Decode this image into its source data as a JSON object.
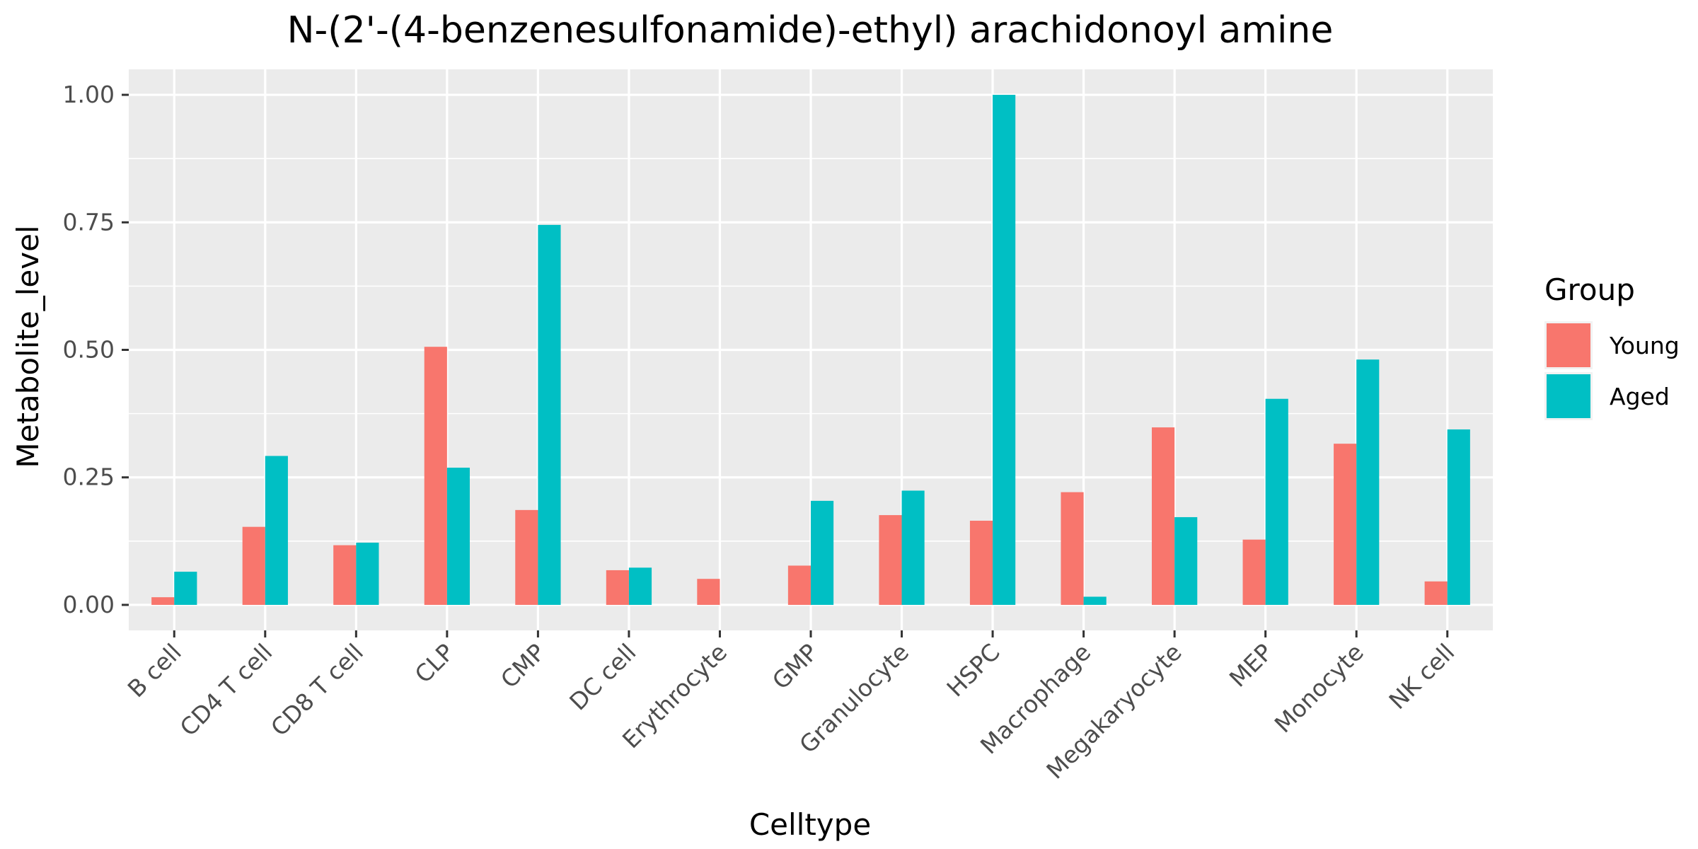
{
  "chart_data": {
    "type": "bar",
    "title": "N-(2'-(4-benzenesulfonamide)-ethyl) arachidonoyl amine",
    "xlabel": "Celltype",
    "ylabel": "Metabolite_level",
    "categories": [
      "B cell",
      "CD4 T cell",
      "CD8 T cell",
      "CLP",
      "CMP",
      "DC cell",
      "Erythrocyte",
      "GMP",
      "Granulocyte",
      "HSPC",
      "Macrophage",
      "Megakaryocyte",
      "MEP",
      "Monocyte",
      "NK cell"
    ],
    "series": [
      {
        "name": "Young",
        "color": "#F8766D",
        "values": [
          0.015,
          0.153,
          0.117,
          0.506,
          0.186,
          0.068,
          0.051,
          0.077,
          0.176,
          0.165,
          0.221,
          0.348,
          0.128,
          0.316,
          0.046
        ]
      },
      {
        "name": "Aged",
        "color": "#00BFC4",
        "values": [
          0.065,
          0.292,
          0.122,
          0.269,
          0.745,
          0.073,
          0.0,
          0.204,
          0.224,
          1.0,
          0.016,
          0.172,
          0.404,
          0.481,
          0.344
        ]
      }
    ],
    "ylim": [
      -0.05,
      1.05
    ],
    "yticks": [
      0,
      0.25,
      0.5,
      0.75,
      1.0
    ],
    "ytick_labels": [
      "0.00",
      "0.25",
      "0.50",
      "0.75",
      "1.00"
    ],
    "legend_title": "Group",
    "legend_position": "right",
    "grid": true,
    "panel_background": "#EBEBEB"
  }
}
